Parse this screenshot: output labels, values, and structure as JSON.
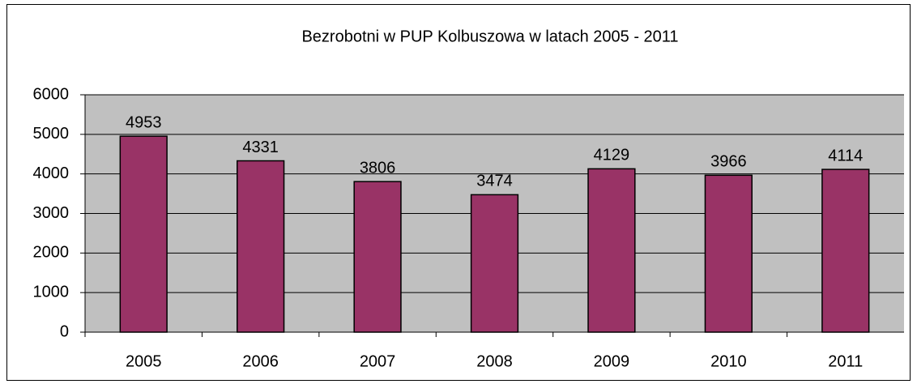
{
  "chart_data": {
    "type": "bar",
    "title": "Bezrobotni w PUP Kolbuszowa w latach 2005 - 2011",
    "categories": [
      "2005",
      "2006",
      "2007",
      "2008",
      "2009",
      "2010",
      "2011"
    ],
    "values": [
      4953,
      4331,
      3806,
      3474,
      4129,
      3966,
      4114
    ],
    "color": "#993366",
    "plot_background": "#c0c0c0",
    "ylim": [
      0,
      6000
    ],
    "yticks": [
      0,
      1000,
      2000,
      3000,
      4000,
      5000,
      6000
    ],
    "grid": true
  }
}
